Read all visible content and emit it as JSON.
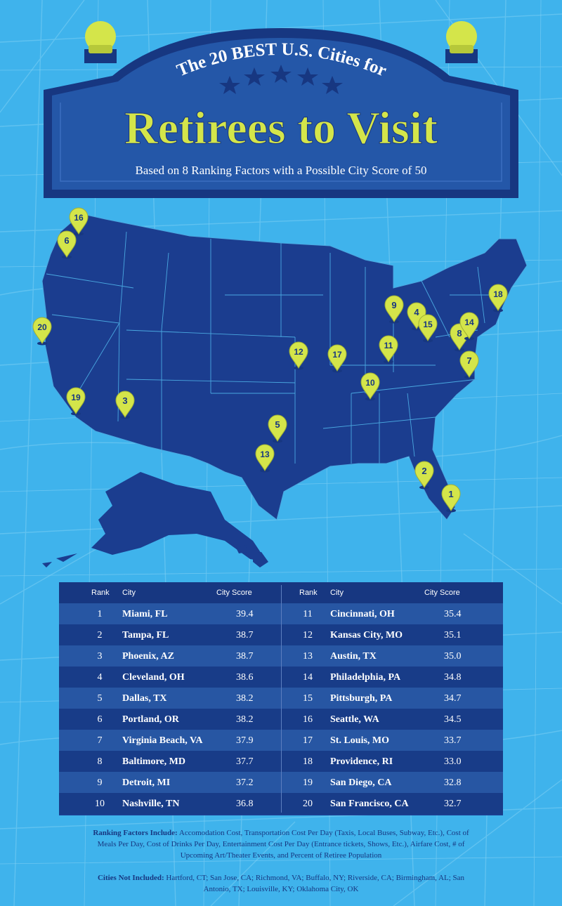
{
  "header": {
    "arc_title": "The 20 BEST U.S. Cities for",
    "main_title": "Retirees to Visit",
    "subtitle": "Based on 8 Ranking Factors with a Possible City Score of 50",
    "star_count": 5
  },
  "colors": {
    "background": "#3fb3ec",
    "map_fill": "#1b3d8f",
    "sign_fill": "#2457a8",
    "sign_border": "#173781",
    "pin": "#d4e54a",
    "title_text": "#d4e54a",
    "table_dark": "#183c88",
    "table_light": "#2756a3"
  },
  "map": {
    "pins": [
      "1",
      "2",
      "3",
      "4",
      "5",
      "6",
      "7",
      "8",
      "9",
      "10",
      "11",
      "12",
      "13",
      "14",
      "15",
      "16",
      "17",
      "18",
      "19",
      "20"
    ]
  },
  "table": {
    "headers": {
      "rank": "Rank",
      "city": "City",
      "score": "City Score"
    },
    "rows": [
      {
        "rank": "1",
        "city": "Miami, FL",
        "score": "39.4"
      },
      {
        "rank": "2",
        "city": "Tampa, FL",
        "score": "38.7"
      },
      {
        "rank": "3",
        "city": "Phoenix, AZ",
        "score": "38.7"
      },
      {
        "rank": "4",
        "city": "Cleveland, OH",
        "score": "38.6"
      },
      {
        "rank": "5",
        "city": "Dallas, TX",
        "score": "38.2"
      },
      {
        "rank": "6",
        "city": "Portland, OR",
        "score": "38.2"
      },
      {
        "rank": "7",
        "city": "Virginia Beach, VA",
        "score": "37.9"
      },
      {
        "rank": "8",
        "city": "Baltimore, MD",
        "score": "37.7"
      },
      {
        "rank": "9",
        "city": "Detroit, MI",
        "score": "37.2"
      },
      {
        "rank": "10",
        "city": "Nashville, TN",
        "score": "36.8"
      },
      {
        "rank": "11",
        "city": "Cincinnati, OH",
        "score": "35.4"
      },
      {
        "rank": "12",
        "city": "Kansas City, MO",
        "score": "35.1"
      },
      {
        "rank": "13",
        "city": "Austin, TX",
        "score": "35.0"
      },
      {
        "rank": "14",
        "city": "Philadelphia, PA",
        "score": "34.8"
      },
      {
        "rank": "15",
        "city": "Pittsburgh, PA",
        "score": "34.7"
      },
      {
        "rank": "16",
        "city": "Seattle, WA",
        "score": "34.5"
      },
      {
        "rank": "17",
        "city": "St. Louis, MO",
        "score": "33.7"
      },
      {
        "rank": "18",
        "city": "Providence, RI",
        "score": "33.0"
      },
      {
        "rank": "19",
        "city": "San Diego, CA",
        "score": "32.8"
      },
      {
        "rank": "20",
        "city": "San Francisco, CA",
        "score": "32.7"
      }
    ]
  },
  "notes": {
    "factors_label": "Ranking Factors Include:",
    "factors_text": "Accomodation Cost, Transportation Cost Per Day (Taxis, Local Buses, Subway, Etc.), Cost of Meals Per Day, Cost of Drinks Per Day, Entertainment Cost Per Day (Entrance tickets, Shows, Etc.), Airfare Cost, # of Upcoming Art/Theater Events, and Percent of Retiree Population",
    "excluded_label": "Cities Not Included:",
    "excluded_text": "Hartford, CT; San Jose, CA; Richmond, VA; Buffalo, NY; Riverside, CA; Birmingham, AL; San Antonio, TX; Louisville, KY; Oklahoma City, OK"
  }
}
